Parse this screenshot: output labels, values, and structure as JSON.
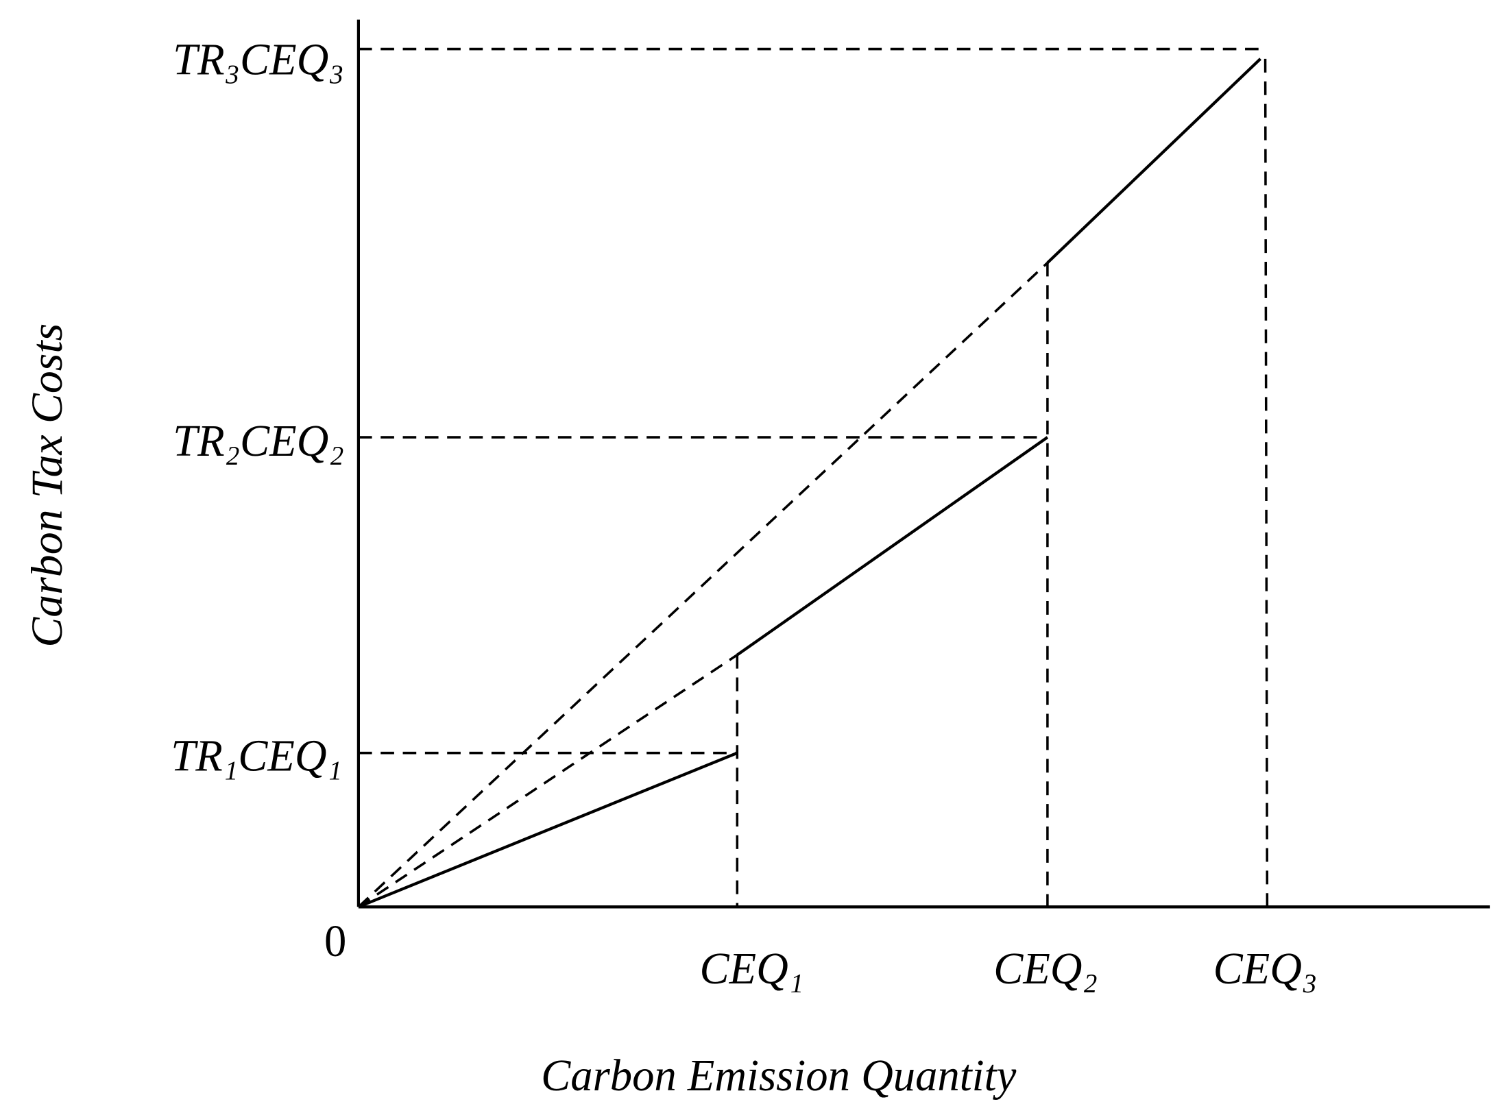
{
  "axes": {
    "y_label": "Carbon Tax Costs",
    "x_label": "Carbon Emission Quantity",
    "origin": "0"
  },
  "x_ticks": [
    "CEQ₁",
    "CEQ₂",
    "CEQ₃"
  ],
  "y_ticks": [
    "TR₁CEQ₁",
    "TR₂CEQ₂",
    "TR₃CEQ₃"
  ]
}
